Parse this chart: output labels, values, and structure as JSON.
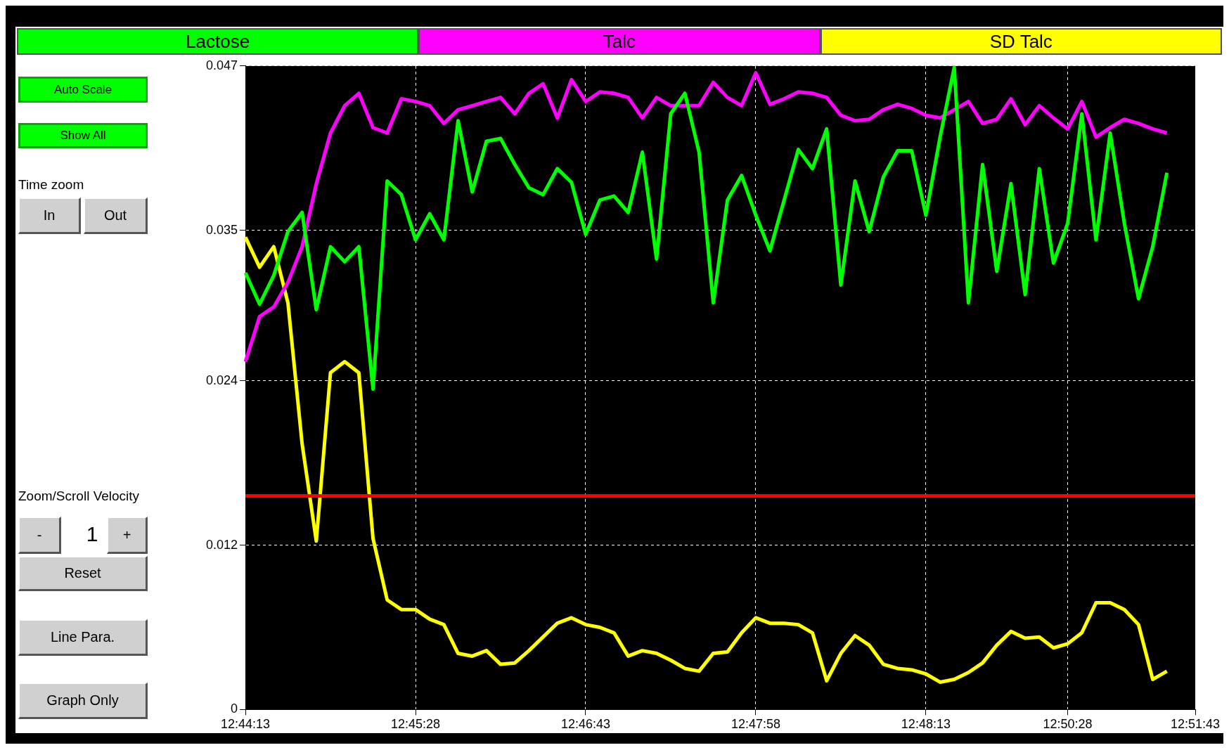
{
  "chart_data": {
    "type": "line",
    "categories": [
      "12:44:13",
      null,
      null,
      null,
      null,
      null,
      null,
      null,
      null,
      null,
      null,
      null,
      "12:45:28",
      null,
      null,
      null,
      null,
      null,
      null,
      null,
      null,
      null,
      null,
      null,
      "12:46:43",
      null,
      null,
      null,
      null,
      null,
      null,
      null,
      null,
      null,
      null,
      null,
      "12:47:58",
      null,
      null,
      null,
      null,
      null,
      null,
      null,
      null,
      null,
      null,
      null,
      "12:48:13",
      null,
      null,
      null,
      null,
      null,
      null,
      null,
      null,
      null,
      "12:50:28",
      null,
      null,
      null,
      null,
      null,
      null,
      null,
      null,
      "12:51:43"
    ],
    "series": [
      {
        "name": "Lactose",
        "color": "#00ff00",
        "values": [
          0.0319,
          0.0296,
          0.0317,
          0.0349,
          0.0363,
          0.0292,
          0.0338,
          0.0327,
          0.0338,
          0.0234,
          0.0386,
          0.0376,
          0.0343,
          0.0362,
          0.0343,
          0.043,
          0.0378,
          0.0415,
          0.0417,
          0.0398,
          0.0381,
          0.0376,
          0.0395,
          0.0385,
          0.0347,
          0.0372,
          0.0375,
          0.0363,
          0.0407,
          0.0329,
          0.0435,
          0.045,
          0.0407,
          0.0297,
          0.0372,
          0.039,
          0.0361,
          0.0335,
          0.0372,
          0.0409,
          0.0395,
          0.0424,
          0.031,
          0.0386,
          0.0349,
          0.0389,
          0.0408,
          0.0408,
          0.0361,
          0.0418,
          0.0469,
          0.0297,
          0.0398,
          0.032,
          0.0384,
          0.0303,
          0.0395,
          0.0326,
          0.0355,
          0.0435,
          0.0343,
          0.0421,
          0.0355,
          0.03,
          0.0338,
          0.0392,
          null,
          null
        ]
      },
      {
        "name": "Talc",
        "color": "#ff00ff",
        "values": [
          0.0254,
          0.0287,
          0.0294,
          0.0312,
          0.0338,
          0.0384,
          0.0421,
          0.0441,
          0.045,
          0.0425,
          0.0421,
          0.0446,
          0.0444,
          0.0441,
          0.0428,
          0.0438,
          0.0441,
          0.0444,
          0.0447,
          0.0435,
          0.045,
          0.0457,
          0.0432,
          0.046,
          0.0444,
          0.0451,
          0.045,
          0.0447,
          0.0432,
          0.0447,
          0.0441,
          0.0441,
          0.0441,
          0.0458,
          0.0447,
          0.0441,
          0.0465,
          0.0442,
          0.0446,
          0.0451,
          0.045,
          0.0447,
          0.0434,
          0.043,
          0.0431,
          0.0438,
          0.0442,
          0.0439,
          0.0434,
          0.0432,
          0.0438,
          0.0444,
          0.0428,
          0.0431,
          0.0446,
          0.0427,
          0.0441,
          0.0432,
          0.0424,
          0.0444,
          0.0418,
          0.0425,
          0.0431,
          0.0428,
          0.0424,
          0.0421,
          null,
          null
        ]
      },
      {
        "name": "SD Talc",
        "color": "#ffff00",
        "values": [
          0.0345,
          0.0323,
          0.0338,
          0.0297,
          0.0194,
          0.0123,
          0.0246,
          0.0254,
          0.0246,
          0.0125,
          0.008,
          0.0073,
          0.0073,
          0.0066,
          0.0062,
          0.0041,
          0.0039,
          0.0043,
          0.0033,
          0.0034,
          0.0043,
          0.0053,
          0.0063,
          0.0067,
          0.0062,
          0.006,
          0.0056,
          0.0039,
          0.0043,
          0.0041,
          0.0036,
          0.003,
          0.0028,
          0.0041,
          0.0042,
          0.0056,
          0.0067,
          0.0063,
          0.0063,
          0.0062,
          0.0056,
          0.0021,
          0.0041,
          0.0054,
          0.0047,
          0.0033,
          0.003,
          0.0029,
          0.0026,
          0.002,
          0.0022,
          0.0027,
          0.0034,
          0.0047,
          0.0057,
          0.0052,
          0.0053,
          0.0045,
          0.0048,
          0.0056,
          0.0078,
          0.0078,
          0.0073,
          0.0062,
          0.0022,
          0.0028,
          null,
          null
        ]
      }
    ],
    "ylim": [
      0,
      0.047
    ],
    "yticks": [
      0,
      0.012,
      0.024,
      0.035,
      0.047
    ],
    "ref_lines": [
      {
        "axis": "y",
        "value": 0.0156,
        "color": "#ff0000"
      }
    ],
    "grid": true,
    "legend": "top",
    "marker": "none",
    "line_style": "solid",
    "annotations": [
      "Auto Scale",
      "Show All",
      "Time zoom",
      "In",
      "Out",
      "Zoom/Scroll Velocity",
      "-",
      "1",
      "+",
      "Reset",
      "Line Para.",
      "Graph Only"
    ]
  }
}
